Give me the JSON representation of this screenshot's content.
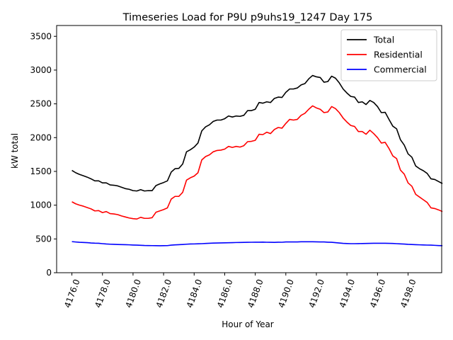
{
  "chart_data": {
    "type": "line",
    "title": "Timeseries Load for P9U p9uhs19_1247  Day 175",
    "xlabel": "Hour of Year",
    "ylabel": "kW total",
    "xlim": [
      4175.0,
      4200.2
    ],
    "ylim": [
      0,
      3660
    ],
    "x_ticks": [
      4176,
      4178,
      4180,
      4182,
      4184,
      4186,
      4188,
      4190,
      4192,
      4194,
      4196,
      4198
    ],
    "x_tick_labels": [
      "4176.0",
      "4178.0",
      "4180.0",
      "4182.0",
      "4184.0",
      "4186.0",
      "4188.0",
      "4190.0",
      "4192.0",
      "4194.0",
      "4196.0",
      "4198.0"
    ],
    "y_ticks": [
      0,
      500,
      1000,
      1500,
      2000,
      2500,
      3000,
      3500
    ],
    "y_tick_labels": [
      "0",
      "500",
      "1000",
      "1500",
      "2000",
      "2500",
      "3000",
      "3500"
    ],
    "legend_position": "top-right",
    "x_start": 4176.0,
    "x_step": 0.25,
    "series": [
      {
        "name": "Total",
        "color": "#000000",
        "values": [
          1515,
          1480,
          1455,
          1435,
          1415,
          1390,
          1360,
          1360,
          1330,
          1330,
          1300,
          1295,
          1285,
          1265,
          1245,
          1235,
          1215,
          1210,
          1230,
          1210,
          1215,
          1215,
          1290,
          1315,
          1335,
          1360,
          1490,
          1540,
          1545,
          1610,
          1790,
          1820,
          1860,
          1920,
          2100,
          2160,
          2190,
          2240,
          2260,
          2260,
          2280,
          2320,
          2305,
          2320,
          2315,
          2330,
          2400,
          2400,
          2420,
          2520,
          2510,
          2530,
          2520,
          2580,
          2600,
          2595,
          2670,
          2720,
          2720,
          2735,
          2780,
          2800,
          2870,
          2920,
          2900,
          2890,
          2820,
          2830,
          2910,
          2880,
          2810,
          2720,
          2660,
          2610,
          2600,
          2520,
          2530,
          2490,
          2550,
          2520,
          2460,
          2370,
          2375,
          2270,
          2170,
          2130,
          1970,
          1890,
          1760,
          1710,
          1580,
          1540,
          1510,
          1470,
          1390,
          1380,
          1350,
          1320
        ]
      },
      {
        "name": "Residential",
        "color": "#ff0000",
        "values": [
          1050,
          1020,
          1000,
          985,
          965,
          945,
          915,
          920,
          890,
          905,
          875,
          870,
          860,
          840,
          825,
          810,
          800,
          795,
          820,
          805,
          805,
          815,
          895,
          915,
          935,
          960,
          1090,
          1130,
          1130,
          1190,
          1370,
          1405,
          1430,
          1480,
          1670,
          1720,
          1745,
          1790,
          1810,
          1815,
          1830,
          1870,
          1855,
          1870,
          1860,
          1880,
          1940,
          1945,
          1960,
          2050,
          2045,
          2080,
          2060,
          2120,
          2150,
          2140,
          2210,
          2270,
          2260,
          2270,
          2330,
          2360,
          2420,
          2470,
          2440,
          2420,
          2370,
          2380,
          2460,
          2430,
          2370,
          2290,
          2230,
          2180,
          2165,
          2090,
          2090,
          2050,
          2110,
          2060,
          2000,
          1920,
          1930,
          1840,
          1730,
          1690,
          1520,
          1460,
          1330,
          1280,
          1160,
          1120,
          1080,
          1040,
          960,
          950,
          930,
          905
        ]
      },
      {
        "name": "Commercial",
        "color": "#0000ff",
        "values": [
          460,
          455,
          450,
          448,
          445,
          440,
          437,
          436,
          430,
          425,
          422,
          420,
          418,
          416,
          415,
          413,
          410,
          408,
          406,
          403,
          402,
          401,
          400,
          399,
          400,
          401,
          408,
          412,
          415,
          418,
          422,
          425,
          426,
          428,
          430,
          433,
          436,
          438,
          440,
          441,
          442,
          444,
          445,
          447,
          448,
          449,
          450,
          451,
          452,
          452,
          453,
          451,
          450,
          449,
          452,
          451,
          455,
          455,
          455,
          456,
          458,
          458,
          458,
          458,
          457,
          456,
          455,
          452,
          450,
          445,
          440,
          435,
          432,
          430,
          430,
          431,
          432,
          433,
          435,
          436,
          436,
          436,
          436,
          435,
          433,
          430,
          427,
          424,
          420,
          418,
          415,
          413,
          411,
          409,
          408,
          405,
          402,
          400
        ]
      }
    ]
  }
}
